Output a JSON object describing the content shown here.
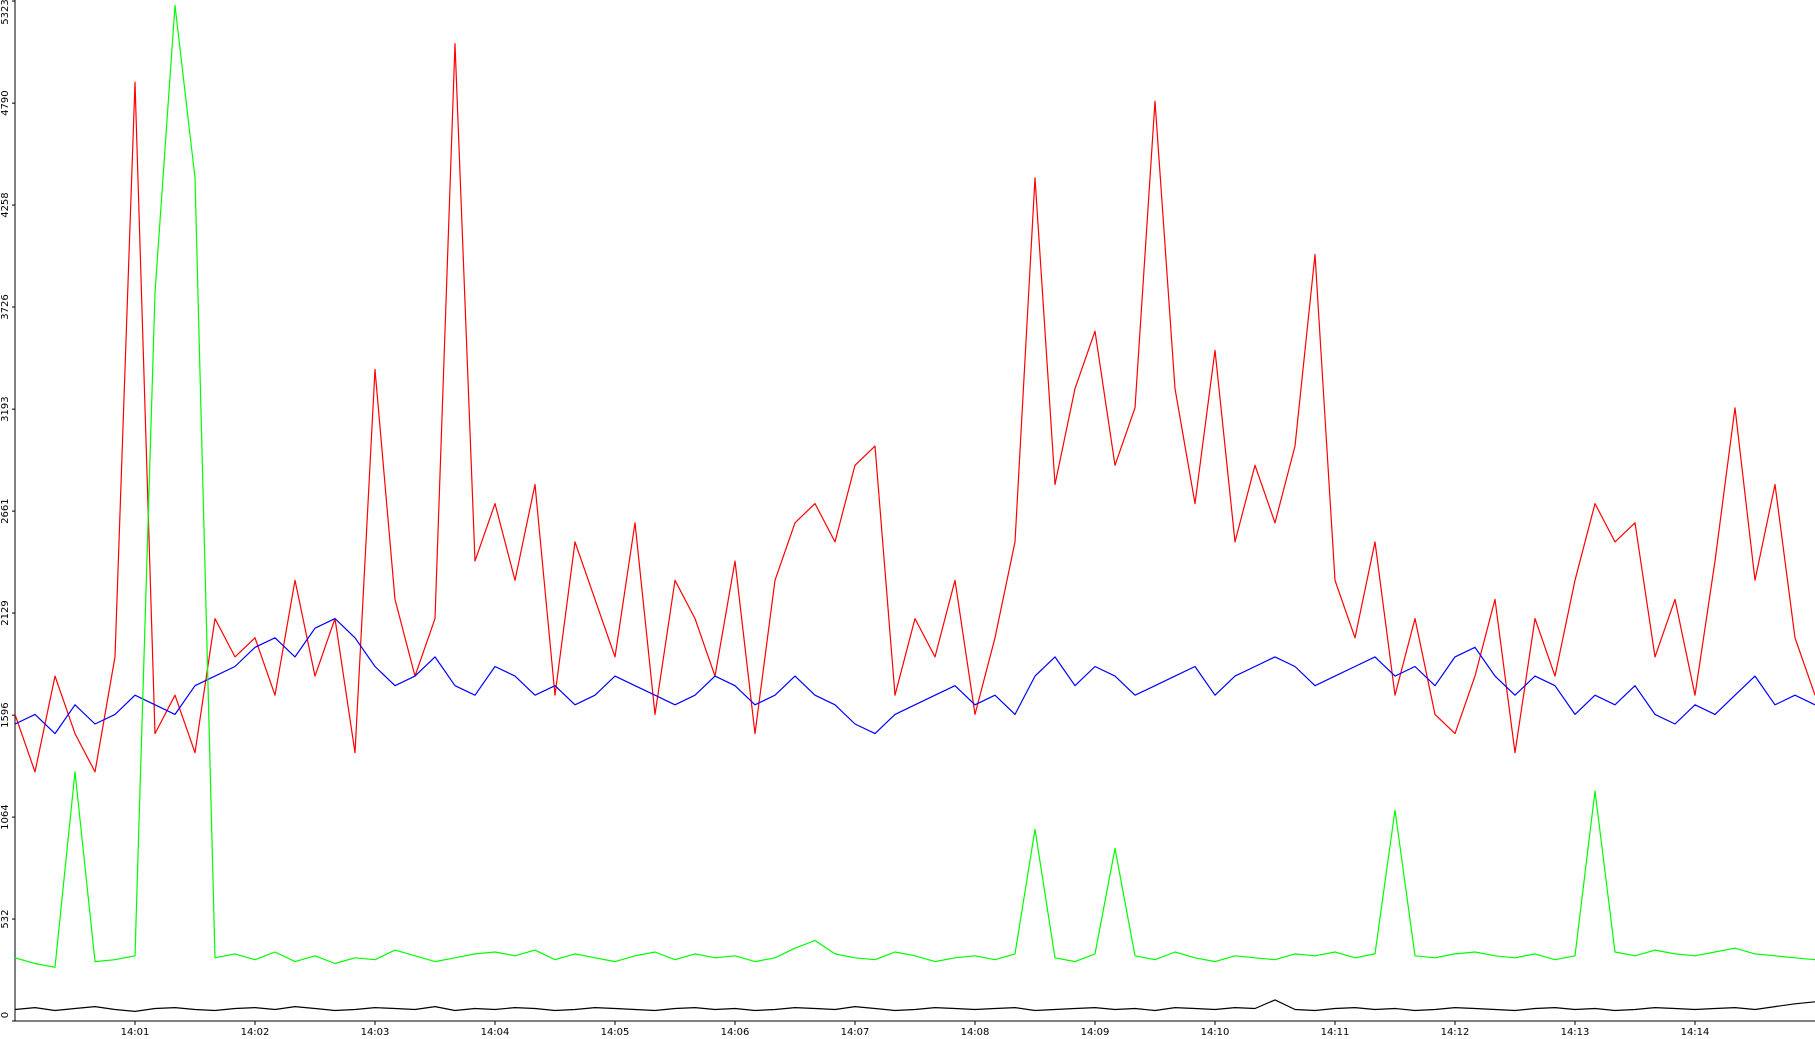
{
  "chart_data": {
    "type": "line",
    "categories": [
      null,
      null,
      null,
      null,
      null,
      null,
      "14:01",
      null,
      null,
      null,
      null,
      null,
      "14:02",
      null,
      null,
      null,
      null,
      null,
      "14:03",
      null,
      null,
      null,
      null,
      null,
      "14:04",
      null,
      null,
      null,
      null,
      null,
      "14:05",
      null,
      null,
      null,
      null,
      null,
      "14:06",
      null,
      null,
      null,
      null,
      null,
      "14:07",
      null,
      null,
      null,
      null,
      null,
      "14:08",
      null,
      null,
      null,
      null,
      null,
      "14:09",
      null,
      null,
      null,
      null,
      null,
      "14:10",
      null,
      null,
      null,
      null,
      null,
      "14:11",
      null,
      null,
      null,
      null,
      null,
      "14:12",
      null,
      null,
      null,
      null,
      null,
      "14:13",
      null,
      null,
      null,
      null,
      null,
      "14:14",
      null,
      null,
      null,
      null,
      null,
      null
    ],
    "series": [
      {
        "color": "#ff0000",
        "values": [
          1600,
          1300,
          1800,
          1500,
          1300,
          1900,
          4900,
          1500,
          1700,
          1400,
          2100,
          1900,
          2000,
          1700,
          2300,
          1800,
          2100,
          1400,
          3400,
          2200,
          1800,
          2100,
          5100,
          2400,
          2700,
          2300,
          2800,
          1700,
          2500,
          2200,
          1900,
          2600,
          1600,
          2300,
          2100,
          1800,
          2400,
          1500,
          2300,
          2600,
          2700,
          2500,
          2900,
          3000,
          1700,
          2100,
          1900,
          2300,
          1600,
          2000,
          2500,
          4400,
          2800,
          3300,
          3600,
          2900,
          3200,
          4800,
          3300,
          2700,
          3500,
          2500,
          2900,
          2600,
          3000,
          4000,
          2300,
          2000,
          2500,
          1700,
          2100,
          1600,
          1500,
          1800,
          2200,
          1400,
          2100,
          1800,
          2300,
          2700,
          2500,
          2600,
          1900,
          2200,
          1700,
          2400,
          3200,
          2300,
          2800,
          2000,
          1700
        ]
      },
      {
        "color": "#0000ff",
        "values": [
          1550,
          1600,
          1500,
          1650,
          1550,
          1600,
          1700,
          1650,
          1600,
          1750,
          1800,
          1850,
          1950,
          2000,
          1900,
          2050,
          2100,
          2000,
          1850,
          1750,
          1800,
          1900,
          1750,
          1700,
          1850,
          1800,
          1700,
          1750,
          1650,
          1700,
          1800,
          1750,
          1700,
          1650,
          1700,
          1800,
          1750,
          1650,
          1700,
          1800,
          1700,
          1650,
          1550,
          1500,
          1600,
          1650,
          1700,
          1750,
          1650,
          1700,
          1600,
          1800,
          1900,
          1750,
          1850,
          1800,
          1700,
          1750,
          1800,
          1850,
          1700,
          1800,
          1850,
          1900,
          1850,
          1750,
          1800,
          1850,
          1900,
          1800,
          1850,
          1750,
          1900,
          1950,
          1800,
          1700,
          1800,
          1750,
          1600,
          1700,
          1650,
          1750,
          1600,
          1550,
          1650,
          1600,
          1700,
          1800,
          1650,
          1700,
          1650
        ]
      },
      {
        "color": "#00ff00",
        "values": [
          330,
          300,
          280,
          1300,
          310,
          320,
          340,
          3800,
          5300,
          4400,
          330,
          350,
          320,
          360,
          310,
          340,
          300,
          330,
          320,
          370,
          340,
          310,
          330,
          350,
          360,
          340,
          370,
          320,
          350,
          330,
          310,
          340,
          360,
          320,
          350,
          330,
          340,
          310,
          330,
          380,
          420,
          350,
          330,
          320,
          360,
          340,
          310,
          330,
          340,
          320,
          350,
          1000,
          330,
          310,
          350,
          900,
          340,
          320,
          360,
          330,
          310,
          340,
          330,
          320,
          350,
          340,
          360,
          330,
          350,
          1100,
          340,
          330,
          350,
          360,
          340,
          330,
          350,
          320,
          340,
          1200,
          360,
          340,
          370,
          350,
          340,
          360,
          380,
          350,
          340,
          330,
          320
        ]
      },
      {
        "color": "#000000",
        "values": [
          60,
          70,
          55,
          65,
          75,
          60,
          50,
          65,
          70,
          60,
          55,
          65,
          70,
          60,
          75,
          65,
          55,
          60,
          70,
          65,
          60,
          75,
          55,
          65,
          60,
          70,
          65,
          55,
          60,
          70,
          65,
          60,
          55,
          65,
          70,
          60,
          65,
          55,
          60,
          70,
          65,
          60,
          75,
          65,
          55,
          60,
          70,
          65,
          60,
          65,
          70,
          55,
          60,
          65,
          70,
          60,
          65,
          55,
          70,
          65,
          60,
          70,
          65,
          110,
          60,
          55,
          65,
          70,
          60,
          65,
          55,
          60,
          70,
          65,
          60,
          55,
          65,
          70,
          60,
          65,
          55,
          60,
          70,
          65,
          60,
          65,
          70,
          60,
          75,
          90,
          100
        ]
      }
    ],
    "ylim": [
      0,
      5323
    ],
    "yticks": [
      0,
      532,
      1064,
      1596,
      2129,
      2661,
      3193,
      3726,
      4258,
      4790,
      5323
    ]
  }
}
